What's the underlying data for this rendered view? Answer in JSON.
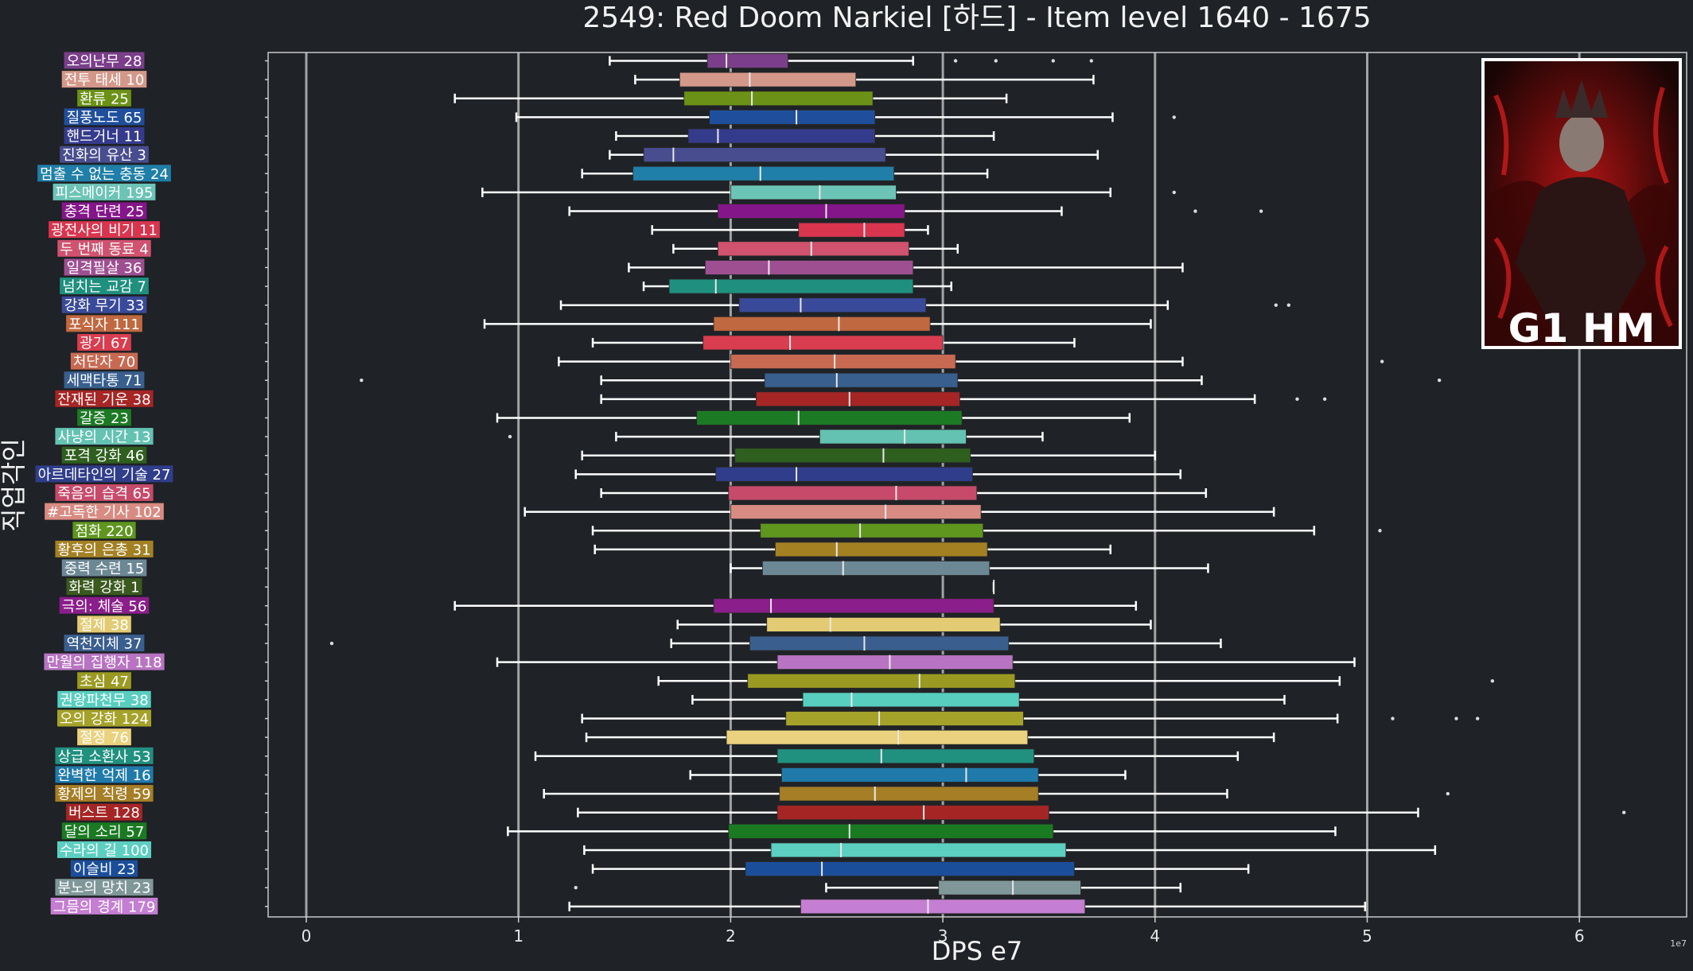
{
  "colors": {
    "background": "#1f2226",
    "plot_frame": "#c8c8c8",
    "gridline": "#cfcfcf",
    "whisker": "#ffffff",
    "outlier": "#dddddd"
  },
  "badge": {
    "text": "G1 HM",
    "image": "boss-portrait"
  },
  "chart_data": {
    "type": "boxplot",
    "orientation": "horizontal",
    "title": "2549: Red Doom Narkiel [하드] - Item level 1640 - 1675",
    "xlabel": "DPS e7",
    "ylabel": "직업각인",
    "x_offset_label": "1e7",
    "xlim": [
      -0.18,
      6.5
    ],
    "x_ticks": [
      0,
      1,
      2,
      3,
      4,
      5,
      6
    ],
    "x_tick_labels": [
      "0",
      "1",
      "2",
      "3",
      "4",
      "5",
      "6"
    ],
    "grid": "vertical",
    "categories": [
      {
        "label": "오의난무 28",
        "color": "#7a3e8a",
        "wl": 1.43,
        "q1": 1.89,
        "med": 1.98,
        "q3": 2.27,
        "wh": 2.86,
        "outliers": [
          3.06,
          3.25,
          3.52,
          3.7
        ]
      },
      {
        "label": "전투 태세 10",
        "color": "#d4988a",
        "wl": 1.55,
        "q1": 1.76,
        "med": 2.09,
        "q3": 2.59,
        "wh": 3.71,
        "outliers": []
      },
      {
        "label": "환류 25",
        "color": "#6b9216",
        "wl": 0.7,
        "q1": 1.78,
        "med": 2.1,
        "q3": 2.67,
        "wh": 3.3,
        "outliers": []
      },
      {
        "label": "질풍노도 65",
        "color": "#1f4f9c",
        "wl": 0.99,
        "q1": 1.9,
        "med": 2.31,
        "q3": 2.68,
        "wh": 3.8,
        "outliers": [
          4.09
        ]
      },
      {
        "label": "핸드거너 11",
        "color": "#353b8c",
        "wl": 1.46,
        "q1": 1.8,
        "med": 1.94,
        "q3": 2.68,
        "wh": 3.24,
        "outliers": []
      },
      {
        "label": "진화의 유산 3",
        "color": "#474d8e",
        "wl": 1.43,
        "q1": 1.59,
        "med": 1.73,
        "q3": 2.73,
        "wh": 3.73,
        "outliers": []
      },
      {
        "label": "멈출 수 없는 충동 24",
        "color": "#1f7fa8",
        "wl": 1.3,
        "q1": 1.54,
        "med": 2.14,
        "q3": 2.77,
        "wh": 3.21,
        "outliers": []
      },
      {
        "label": "피스메이커 195",
        "color": "#6cc4b6",
        "wl": 0.83,
        "q1": 2.0,
        "med": 2.42,
        "q3": 2.78,
        "wh": 3.79,
        "outliers": [
          4.09
        ]
      },
      {
        "label": "충격 단련 25",
        "color": "#85168a",
        "wl": 1.24,
        "q1": 1.94,
        "med": 2.45,
        "q3": 2.82,
        "wh": 3.56,
        "outliers": [
          4.19,
          4.5
        ]
      },
      {
        "label": "광전사의 비기 11",
        "color": "#d9354f",
        "wl": 1.63,
        "q1": 2.32,
        "med": 2.63,
        "q3": 2.82,
        "wh": 2.93,
        "outliers": []
      },
      {
        "label": "두 번째 동료 4",
        "color": "#d0526f",
        "wl": 1.73,
        "q1": 1.94,
        "med": 2.38,
        "q3": 2.84,
        "wh": 3.07,
        "outliers": []
      },
      {
        "label": "일격필살 36",
        "color": "#9e4f92",
        "wl": 1.52,
        "q1": 1.88,
        "med": 2.18,
        "q3": 2.86,
        "wh": 4.13,
        "outliers": []
      },
      {
        "label": "넘치는 교감 7",
        "color": "#1f8f7e",
        "wl": 1.59,
        "q1": 1.71,
        "med": 1.93,
        "q3": 2.86,
        "wh": 3.04,
        "outliers": []
      },
      {
        "label": "강화 무기 33",
        "color": "#3a4a9a",
        "wl": 1.2,
        "q1": 2.04,
        "med": 2.33,
        "q3": 2.92,
        "wh": 4.06,
        "outliers": [
          4.57,
          4.63
        ]
      },
      {
        "label": "포식자 111",
        "color": "#c06840",
        "wl": 0.84,
        "q1": 1.92,
        "med": 2.51,
        "q3": 2.94,
        "wh": 3.98,
        "outliers": []
      },
      {
        "label": "광기 67",
        "color": "#d93d4f",
        "wl": 1.35,
        "q1": 1.87,
        "med": 2.28,
        "q3": 3.0,
        "wh": 3.62,
        "outliers": []
      },
      {
        "label": "처단자 70",
        "color": "#c86a52",
        "wl": 1.19,
        "q1": 2.0,
        "med": 2.49,
        "q3": 3.06,
        "wh": 4.13,
        "outliers": [
          5.07
        ]
      },
      {
        "label": "세맥타통 71",
        "color": "#385f8e",
        "wl": 1.39,
        "q1": 2.16,
        "med": 2.5,
        "q3": 3.07,
        "wh": 4.22,
        "outliers": [
          0.26,
          5.34
        ]
      },
      {
        "label": "잔재된 기운 38",
        "color": "#a62525",
        "wl": 1.39,
        "q1": 2.12,
        "med": 2.56,
        "q3": 3.08,
        "wh": 4.47,
        "outliers": [
          4.67,
          4.8
        ]
      },
      {
        "label": "갈증 23",
        "color": "#1c7a24",
        "wl": 0.9,
        "q1": 1.84,
        "med": 2.32,
        "q3": 3.09,
        "wh": 3.88,
        "outliers": []
      },
      {
        "label": "사냥의 시간 13",
        "color": "#64c2b2",
        "wl": 1.46,
        "q1": 2.42,
        "med": 2.82,
        "q3": 3.11,
        "wh": 3.47,
        "outliers": [
          0.96
        ]
      },
      {
        "label": "포격 강화 46",
        "color": "#2f5f1e",
        "wl": 1.3,
        "q1": 2.02,
        "med": 2.72,
        "q3": 3.13,
        "wh": 4.0,
        "outliers": []
      },
      {
        "label": "아르데타인의 기술 27",
        "color": "#2f3d8a",
        "wl": 1.27,
        "q1": 1.93,
        "med": 2.31,
        "q3": 3.14,
        "wh": 4.12,
        "outliers": []
      },
      {
        "label": "죽음의 습격 65",
        "color": "#c74a6a",
        "wl": 1.39,
        "q1": 1.99,
        "med": 2.78,
        "q3": 3.16,
        "wh": 4.24,
        "outliers": []
      },
      {
        "label": "#고독한 기사 102",
        "color": "#d88b82",
        "wl": 1.03,
        "q1": 2.0,
        "med": 2.73,
        "q3": 3.18,
        "wh": 4.56,
        "outliers": []
      },
      {
        "label": "점화 220",
        "color": "#5e961e",
        "wl": 1.35,
        "q1": 2.14,
        "med": 2.61,
        "q3": 3.19,
        "wh": 4.75,
        "outliers": [
          5.06
        ]
      },
      {
        "label": "황후의 은총 31",
        "color": "#a38123",
        "wl": 1.36,
        "q1": 2.21,
        "med": 2.5,
        "q3": 3.21,
        "wh": 3.79,
        "outliers": []
      },
      {
        "label": "중력 수련 15",
        "color": "#6d8895",
        "wl": 2.0,
        "q1": 2.15,
        "med": 2.53,
        "q3": 3.22,
        "wh": 4.25,
        "outliers": []
      },
      {
        "label": "화력 강화 1",
        "color": "#3a5a1e",
        "wl": 3.24,
        "q1": 3.24,
        "med": 3.24,
        "q3": 3.24,
        "wh": 3.24,
        "outliers": []
      },
      {
        "label": "극의: 체술 56",
        "color": "#8a1e8a",
        "wl": 0.7,
        "q1": 1.92,
        "med": 2.19,
        "q3": 3.24,
        "wh": 3.91,
        "outliers": []
      },
      {
        "label": "절제 38",
        "color": "#e2cb73",
        "wl": 1.75,
        "q1": 2.17,
        "med": 2.47,
        "q3": 3.27,
        "wh": 3.98,
        "outliers": []
      },
      {
        "label": "역천지체 37",
        "color": "#3a5e8e",
        "wl": 1.72,
        "q1": 2.09,
        "med": 2.63,
        "q3": 3.31,
        "wh": 4.31,
        "outliers": [
          0.12
        ]
      },
      {
        "label": "만월의 집행자 118",
        "color": "#b874c2",
        "wl": 0.9,
        "q1": 2.22,
        "med": 2.75,
        "q3": 3.33,
        "wh": 4.94,
        "outliers": []
      },
      {
        "label": "초심 47",
        "color": "#9a9a22",
        "wl": 1.66,
        "q1": 2.08,
        "med": 2.89,
        "q3": 3.34,
        "wh": 4.87,
        "outliers": [
          5.59
        ]
      },
      {
        "label": "권왕파천무 38",
        "color": "#58cebf",
        "wl": 1.82,
        "q1": 2.34,
        "med": 2.57,
        "q3": 3.36,
        "wh": 4.61,
        "outliers": []
      },
      {
        "label": "오의 강화 124",
        "color": "#a5a22a",
        "wl": 1.3,
        "q1": 2.26,
        "med": 2.7,
        "q3": 3.38,
        "wh": 4.86,
        "outliers": [
          5.12,
          5.42,
          5.52
        ]
      },
      {
        "label": "절정 76",
        "color": "#ead27e",
        "wl": 1.32,
        "q1": 1.98,
        "med": 2.79,
        "q3": 3.4,
        "wh": 4.56,
        "outliers": []
      },
      {
        "label": "상급 소환사 53",
        "color": "#20907f",
        "wl": 1.08,
        "q1": 2.22,
        "med": 2.71,
        "q3": 3.43,
        "wh": 4.39,
        "outliers": []
      },
      {
        "label": "완벽한 억제 16",
        "color": "#1f7aaa",
        "wl": 1.81,
        "q1": 2.24,
        "med": 3.11,
        "q3": 3.45,
        "wh": 3.86,
        "outliers": []
      },
      {
        "label": "황제의 칙령 59",
        "color": "#a57e26",
        "wl": 1.12,
        "q1": 2.23,
        "med": 2.68,
        "q3": 3.45,
        "wh": 4.34,
        "outliers": [
          5.38
        ]
      },
      {
        "label": "버스트 128",
        "color": "#a52525",
        "wl": 1.28,
        "q1": 2.22,
        "med": 2.91,
        "q3": 3.5,
        "wh": 5.24,
        "outliers": [
          6.21
        ]
      },
      {
        "label": "달의 소리 57",
        "color": "#1a7a22",
        "wl": 0.95,
        "q1": 1.99,
        "med": 2.56,
        "q3": 3.52,
        "wh": 4.85,
        "outliers": []
      },
      {
        "label": "수라의 길 100",
        "color": "#5ccfc1",
        "wl": 1.31,
        "q1": 2.19,
        "med": 2.52,
        "q3": 3.58,
        "wh": 5.32,
        "outliers": []
      },
      {
        "label": "이슬비 23",
        "color": "#1b4e9a",
        "wl": 1.35,
        "q1": 2.07,
        "med": 2.43,
        "q3": 3.62,
        "wh": 4.44,
        "outliers": []
      },
      {
        "label": "분노의 망치 23",
        "color": "#80979a",
        "wl": 2.45,
        "q1": 2.98,
        "med": 3.33,
        "q3": 3.65,
        "wh": 4.12,
        "outliers": [
          1.27
        ]
      },
      {
        "label": "그믐의 경계 179",
        "color": "#c47ed2",
        "wl": 1.24,
        "q1": 2.33,
        "med": 2.93,
        "q3": 3.67,
        "wh": 4.99,
        "outliers": []
      }
    ]
  }
}
